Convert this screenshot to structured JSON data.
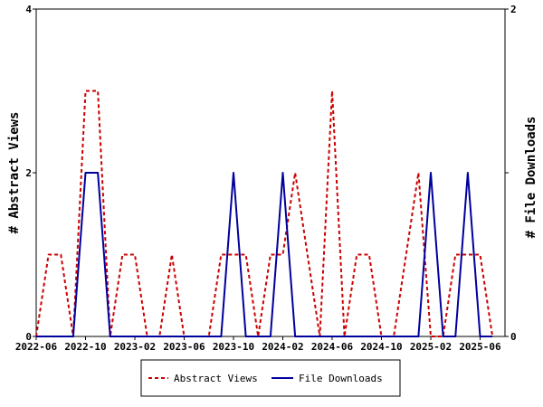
{
  "chart_data": {
    "type": "line",
    "x_ticks": [
      "2022-06",
      "2022-10",
      "2023-02",
      "2023-06",
      "2023-10",
      "2024-02",
      "2024-06",
      "2024-10",
      "2025-02",
      "2025-06"
    ],
    "y_left": {
      "label": "# Abstract Views",
      "ticks": [
        "0",
        "2",
        "4"
      ],
      "lim": [
        0,
        4
      ]
    },
    "y_right": {
      "label": "# File Downloads",
      "ticks": [
        "0",
        "1",
        "2"
      ],
      "lim": [
        0,
        2
      ]
    },
    "legend_position": "bottom-center",
    "series": [
      {
        "name": "Abstract Views",
        "axis": "left",
        "style": "dashed",
        "color": "#cc0000",
        "points": [
          [
            "2022-06",
            0
          ],
          [
            "2022-07",
            1
          ],
          [
            "2022-08",
            1
          ],
          [
            "2022-09",
            0
          ],
          [
            "2022-10",
            3
          ],
          [
            "2022-11",
            3
          ],
          [
            "2022-12",
            0
          ],
          [
            "2023-01",
            1
          ],
          [
            "2023-02",
            1
          ],
          [
            "2023-03",
            0
          ],
          [
            "2023-04",
            0
          ],
          [
            "2023-05",
            1
          ],
          [
            "2023-06",
            0
          ],
          [
            "2023-07",
            0
          ],
          [
            "2023-08",
            0
          ],
          [
            "2023-09",
            1
          ],
          [
            "2023-10",
            1
          ],
          [
            "2023-11",
            1
          ],
          [
            "2023-12",
            0
          ],
          [
            "2024-01",
            1
          ],
          [
            "2024-02",
            1
          ],
          [
            "2024-03",
            2
          ],
          [
            "2024-04",
            1
          ],
          [
            "2024-05",
            0
          ],
          [
            "2024-06",
            3
          ],
          [
            "2024-07",
            0
          ],
          [
            "2024-08",
            1
          ],
          [
            "2024-09",
            1
          ],
          [
            "2024-10",
            0
          ],
          [
            "2024-11",
            0
          ],
          [
            "2024-12",
            1
          ],
          [
            "2025-01",
            2
          ],
          [
            "2025-02",
            0
          ],
          [
            "2025-03",
            0
          ],
          [
            "2025-04",
            1
          ],
          [
            "2025-05",
            1
          ],
          [
            "2025-06",
            1
          ],
          [
            "2025-07",
            0
          ]
        ]
      },
      {
        "name": "File Downloads",
        "axis": "right",
        "style": "solid",
        "color": "#00009c",
        "points": [
          [
            "2022-06",
            0
          ],
          [
            "2022-07",
            0
          ],
          [
            "2022-08",
            0
          ],
          [
            "2022-09",
            0
          ],
          [
            "2022-10",
            1
          ],
          [
            "2022-11",
            1
          ],
          [
            "2022-12",
            0
          ],
          [
            "2023-01",
            0
          ],
          [
            "2023-02",
            0
          ],
          [
            "2023-03",
            0
          ],
          [
            "2023-04",
            0
          ],
          [
            "2023-05",
            0
          ],
          [
            "2023-06",
            0
          ],
          [
            "2023-07",
            0
          ],
          [
            "2023-08",
            0
          ],
          [
            "2023-09",
            0
          ],
          [
            "2023-10",
            1
          ],
          [
            "2023-11",
            0
          ],
          [
            "2023-12",
            0
          ],
          [
            "2024-01",
            0
          ],
          [
            "2024-02",
            1
          ],
          [
            "2024-03",
            0
          ],
          [
            "2024-04",
            0
          ],
          [
            "2024-05",
            0
          ],
          [
            "2024-06",
            0
          ],
          [
            "2024-07",
            0
          ],
          [
            "2024-08",
            0
          ],
          [
            "2024-09",
            0
          ],
          [
            "2024-10",
            0
          ],
          [
            "2024-11",
            0
          ],
          [
            "2024-12",
            0
          ],
          [
            "2025-01",
            0
          ],
          [
            "2025-02",
            1
          ],
          [
            "2025-03",
            0
          ],
          [
            "2025-04",
            0
          ],
          [
            "2025-05",
            1
          ],
          [
            "2025-06",
            0
          ],
          [
            "2025-07",
            0
          ]
        ]
      }
    ]
  }
}
